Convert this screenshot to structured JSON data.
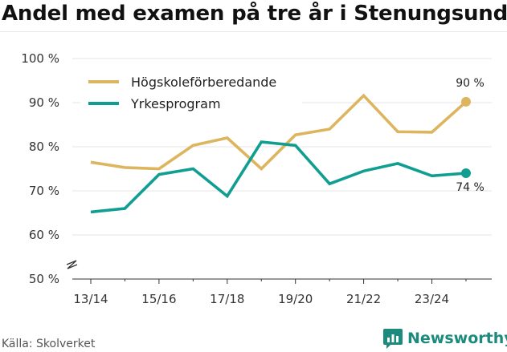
{
  "title": "Andel med examen på tre år i Stenungsund",
  "source": "Källa: Skolverket",
  "brand": "Newsworthy",
  "colors": {
    "series_1": "#DDB55F",
    "series_2": "#0F9E91",
    "brand": "#1D8A7E"
  },
  "chart_data": {
    "type": "line",
    "x": [
      "13/14",
      "14/15",
      "15/16",
      "16/17",
      "17/18",
      "18/19",
      "19/20",
      "20/21",
      "21/22",
      "22/23",
      "23/24",
      "24/25"
    ],
    "tick_labels": [
      "13/14",
      "15/16",
      "17/18",
      "19/20",
      "21/22",
      "23/24"
    ],
    "y_ticks": [
      "100 %",
      "90 %",
      "80 %",
      "70 %",
      "60 %",
      "50 %"
    ],
    "ylim": [
      50,
      100
    ],
    "y_broken_axis": true,
    "series": [
      {
        "name": "Högskoleförberedande",
        "values": [
          76.5,
          75.3,
          75.0,
          80.3,
          82.0,
          75.0,
          82.7,
          84.0,
          91.6,
          83.4,
          83.3,
          90.2
        ]
      },
      {
        "name": "Yrkesprogram",
        "values": [
          65.2,
          66.0,
          73.7,
          75.0,
          68.8,
          81.1,
          80.3,
          71.6,
          74.5,
          76.2,
          73.4,
          74.0
        ]
      }
    ],
    "end_labels": [
      "90 %",
      "74 %"
    ],
    "legend_position": "top-left"
  }
}
